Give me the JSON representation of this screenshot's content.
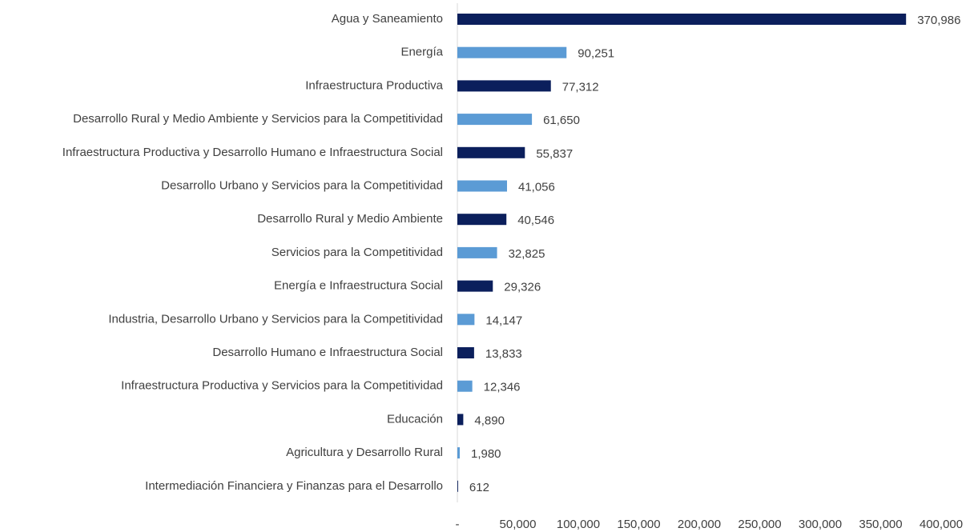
{
  "chart_data": {
    "type": "hbar",
    "categories": [
      "Agua y Saneamiento",
      "Energía",
      "Infraestructura Productiva",
      "Desarrollo Rural y Medio Ambiente y Servicios para la Competitividad",
      "Infraestructura Productiva y Desarrollo Humano e Infraestructura Social",
      "Desarrollo Urbano y Servicios para la Competitividad",
      "Desarrollo Rural y Medio Ambiente",
      "Servicios para la Competitividad",
      "Energía e Infraestructura Social",
      "Industria, Desarrollo Urbano y Servicios para la Competitividad",
      "Desarrollo Humano e Infraestructura Social",
      "Infraestructura Productiva y Servicios para la Competitividad",
      "Educación",
      "Agricultura y Desarrollo Rural",
      "Intermediación Financiera y Finanzas para el Desarrollo"
    ],
    "values": [
      370986,
      90251,
      77312,
      61650,
      55837,
      41056,
      40546,
      32825,
      29326,
      14147,
      13833,
      12346,
      4890,
      1980,
      612
    ],
    "value_labels": [
      "370,986",
      "90,251",
      "77,312",
      "61,650",
      "55,837",
      "41,056",
      "40,546",
      "32,825",
      "29,326",
      "14,147",
      "13,833",
      "12,346",
      "4,890",
      "1,980",
      "612"
    ],
    "colors": [
      "#0b1f5c",
      "#5b9bd5",
      "#0b1f5c",
      "#5b9bd5",
      "#0b1f5c",
      "#5b9bd5",
      "#0b1f5c",
      "#5b9bd5",
      "#0b1f5c",
      "#5b9bd5",
      "#0b1f5c",
      "#5b9bd5",
      "#0b1f5c",
      "#5b9bd5",
      "#0b1f5c"
    ],
    "xlim": [
      0,
      400000
    ],
    "xticks": [
      {
        "value": 0,
        "label": "-"
      },
      {
        "value": 50000,
        "label": "50,000"
      },
      {
        "value": 100000,
        "label": "100,000"
      },
      {
        "value": 150000,
        "label": "150,000"
      },
      {
        "value": 200000,
        "label": "200,000"
      },
      {
        "value": 250000,
        "label": "250,000"
      },
      {
        "value": 300000,
        "label": "300,000"
      },
      {
        "value": 350000,
        "label": "350,000"
      },
      {
        "value": 400000,
        "label": "400,000"
      }
    ],
    "grid": false
  }
}
